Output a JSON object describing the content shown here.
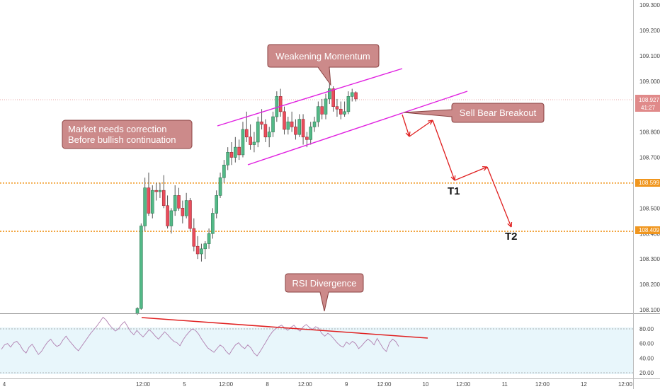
{
  "chart_data": {
    "type": "candlestick",
    "price_axis": {
      "ticks": [
        "109.300",
        "109.200",
        "109.100",
        "109.000",
        "108.900",
        "108.800",
        "108.700",
        "108.600",
        "108.500",
        "108.400",
        "108.300",
        "108.200",
        "108.100"
      ],
      "tick_values": [
        109.3,
        109.2,
        109.1,
        109.0,
        108.9,
        108.8,
        108.7,
        108.6,
        108.5,
        108.4,
        108.3,
        108.2,
        108.1
      ],
      "range": [
        108.08,
        109.33
      ],
      "current_price": "108.927",
      "countdown": "41:27",
      "level_labels": [
        "108.599",
        "108.409"
      ]
    },
    "time_axis": {
      "labels": [
        "4",
        "12:00",
        "5",
        "12:00",
        "8",
        "12:00",
        "9",
        "12:00",
        "10",
        "12:00",
        "11",
        "12:00",
        "12",
        "12:00"
      ],
      "bar_index": [
        0,
        10,
        21,
        32,
        43,
        53,
        64,
        74,
        85,
        95,
        106,
        116,
        127,
        138
      ]
    },
    "candles": [
      {
        "o": 108.085,
        "h": 108.11,
        "l": 108.08,
        "c": 108.105
      },
      {
        "o": 108.105,
        "h": 108.44,
        "l": 108.1,
        "c": 108.43
      },
      {
        "o": 108.43,
        "h": 108.62,
        "l": 108.41,
        "c": 108.58
      },
      {
        "o": 108.58,
        "h": 108.64,
        "l": 108.47,
        "c": 108.48
      },
      {
        "o": 108.48,
        "h": 108.59,
        "l": 108.46,
        "c": 108.57
      },
      {
        "o": 108.57,
        "h": 108.6,
        "l": 108.53,
        "c": 108.565
      },
      {
        "o": 108.565,
        "h": 108.6,
        "l": 108.54,
        "c": 108.57
      },
      {
        "o": 108.57,
        "h": 108.63,
        "l": 108.5,
        "c": 108.51
      },
      {
        "o": 108.51,
        "h": 108.55,
        "l": 108.42,
        "c": 108.43
      },
      {
        "o": 108.43,
        "h": 108.5,
        "l": 108.4,
        "c": 108.49
      },
      {
        "o": 108.49,
        "h": 108.59,
        "l": 108.47,
        "c": 108.55
      },
      {
        "o": 108.55,
        "h": 108.58,
        "l": 108.49,
        "c": 108.5
      },
      {
        "o": 108.5,
        "h": 108.53,
        "l": 108.44,
        "c": 108.47
      },
      {
        "o": 108.47,
        "h": 108.56,
        "l": 108.46,
        "c": 108.53
      },
      {
        "o": 108.53,
        "h": 108.54,
        "l": 108.41,
        "c": 108.42
      },
      {
        "o": 108.42,
        "h": 108.46,
        "l": 108.33,
        "c": 108.35
      },
      {
        "o": 108.35,
        "h": 108.39,
        "l": 108.3,
        "c": 108.32
      },
      {
        "o": 108.32,
        "h": 108.36,
        "l": 108.29,
        "c": 108.34
      },
      {
        "o": 108.34,
        "h": 108.37,
        "l": 108.3,
        "c": 108.36
      },
      {
        "o": 108.36,
        "h": 108.42,
        "l": 108.34,
        "c": 108.4
      },
      {
        "o": 108.4,
        "h": 108.5,
        "l": 108.38,
        "c": 108.48
      },
      {
        "o": 108.48,
        "h": 108.57,
        "l": 108.46,
        "c": 108.55
      },
      {
        "o": 108.55,
        "h": 108.64,
        "l": 108.54,
        "c": 108.62
      },
      {
        "o": 108.62,
        "h": 108.69,
        "l": 108.6,
        "c": 108.67
      },
      {
        "o": 108.67,
        "h": 108.74,
        "l": 108.65,
        "c": 108.72
      },
      {
        "o": 108.72,
        "h": 108.76,
        "l": 108.67,
        "c": 108.7
      },
      {
        "o": 108.7,
        "h": 108.78,
        "l": 108.68,
        "c": 108.74
      },
      {
        "o": 108.74,
        "h": 108.77,
        "l": 108.69,
        "c": 108.71
      },
      {
        "o": 108.71,
        "h": 108.84,
        "l": 108.7,
        "c": 108.81
      },
      {
        "o": 108.81,
        "h": 108.88,
        "l": 108.76,
        "c": 108.78
      },
      {
        "o": 108.78,
        "h": 108.83,
        "l": 108.73,
        "c": 108.75
      },
      {
        "o": 108.75,
        "h": 108.8,
        "l": 108.72,
        "c": 108.76
      },
      {
        "o": 108.76,
        "h": 108.86,
        "l": 108.74,
        "c": 108.84
      },
      {
        "o": 108.84,
        "h": 108.89,
        "l": 108.81,
        "c": 108.83
      },
      {
        "o": 108.83,
        "h": 108.85,
        "l": 108.76,
        "c": 108.78
      },
      {
        "o": 108.78,
        "h": 108.82,
        "l": 108.74,
        "c": 108.8
      },
      {
        "o": 108.8,
        "h": 108.88,
        "l": 108.78,
        "c": 108.86
      },
      {
        "o": 108.86,
        "h": 108.96,
        "l": 108.84,
        "c": 108.94
      },
      {
        "o": 108.94,
        "h": 108.97,
        "l": 108.86,
        "c": 108.88
      },
      {
        "o": 108.88,
        "h": 108.9,
        "l": 108.79,
        "c": 108.81
      },
      {
        "o": 108.81,
        "h": 108.86,
        "l": 108.79,
        "c": 108.84
      },
      {
        "o": 108.84,
        "h": 108.88,
        "l": 108.8,
        "c": 108.82
      },
      {
        "o": 108.82,
        "h": 108.85,
        "l": 108.77,
        "c": 108.79
      },
      {
        "o": 108.79,
        "h": 108.87,
        "l": 108.78,
        "c": 108.85
      },
      {
        "o": 108.85,
        "h": 108.87,
        "l": 108.75,
        "c": 108.78
      },
      {
        "o": 108.78,
        "h": 108.8,
        "l": 108.74,
        "c": 108.77
      },
      {
        "o": 108.77,
        "h": 108.84,
        "l": 108.75,
        "c": 108.82
      },
      {
        "o": 108.82,
        "h": 108.86,
        "l": 108.8,
        "c": 108.84
      },
      {
        "o": 108.84,
        "h": 108.92,
        "l": 108.82,
        "c": 108.9
      },
      {
        "o": 108.9,
        "h": 108.93,
        "l": 108.85,
        "c": 108.87
      },
      {
        "o": 108.87,
        "h": 108.95,
        "l": 108.85,
        "c": 108.93
      },
      {
        "o": 108.93,
        "h": 108.99,
        "l": 108.91,
        "c": 108.97
      },
      {
        "o": 108.97,
        "h": 108.98,
        "l": 108.88,
        "c": 108.9
      },
      {
        "o": 108.9,
        "h": 108.93,
        "l": 108.86,
        "c": 108.89
      },
      {
        "o": 108.89,
        "h": 108.92,
        "l": 108.85,
        "c": 108.87
      },
      {
        "o": 108.87,
        "h": 108.92,
        "l": 108.86,
        "c": 108.88
      },
      {
        "o": 108.88,
        "h": 108.96,
        "l": 108.87,
        "c": 108.94
      },
      {
        "o": 108.94,
        "h": 108.97,
        "l": 108.92,
        "c": 108.955
      },
      {
        "o": 108.955,
        "h": 108.96,
        "l": 108.92,
        "c": 108.93
      }
    ],
    "overlays": {
      "channel_upper": [
        {
          "bar": 0,
          "price": 108.85
        },
        {
          "bar": 0,
          "price": 109.04
        }
      ],
      "channel_lower": [
        {
          "bar": 0,
          "price": 108.69
        },
        {
          "bar": 0,
          "price": 108.95
        }
      ],
      "horizontal_levels": [
        108.599,
        108.409
      ]
    },
    "annotations": {
      "weakening": "Weakening Momentum",
      "market_line1": "Market needs correction",
      "market_line2": "Before bullish continuation",
      "sell": "Sell Bear Breakout",
      "rsi": "RSI Divergence",
      "t1": "T1",
      "t2": "T2"
    },
    "rsi": {
      "ticks": [
        "80.00",
        "60.00",
        "40.00",
        "20.00"
      ],
      "tick_values": [
        80,
        60,
        40,
        20
      ],
      "range": [
        17,
        104
      ],
      "values": [
        52,
        58,
        60,
        55,
        61,
        63,
        58,
        51,
        47,
        55,
        59,
        52,
        45,
        49,
        56,
        62,
        66,
        60,
        56,
        58,
        65,
        70,
        64,
        59,
        54,
        50,
        56,
        62,
        68,
        74,
        79,
        84,
        90,
        96,
        92,
        86,
        81,
        77,
        80,
        86,
        90,
        83,
        76,
        72,
        78,
        73,
        69,
        74,
        79,
        75,
        70,
        66,
        71,
        76,
        72,
        67,
        63,
        61,
        57,
        65,
        71,
        76,
        80,
        78,
        73,
        66,
        60,
        54,
        51,
        48,
        53,
        58,
        55,
        49,
        45,
        52,
        58,
        61,
        56,
        53,
        58,
        54,
        47,
        43,
        49,
        56,
        63,
        70,
        76,
        80,
        83,
        85,
        81,
        78,
        82,
        85,
        80,
        77,
        83,
        86,
        82,
        79,
        83,
        81,
        74,
        70,
        74,
        71,
        66,
        61,
        57,
        55,
        62,
        59,
        63,
        60,
        53,
        57,
        62,
        66,
        63,
        58,
        67,
        60,
        53,
        49,
        61,
        66,
        63,
        56
      ]
    }
  }
}
